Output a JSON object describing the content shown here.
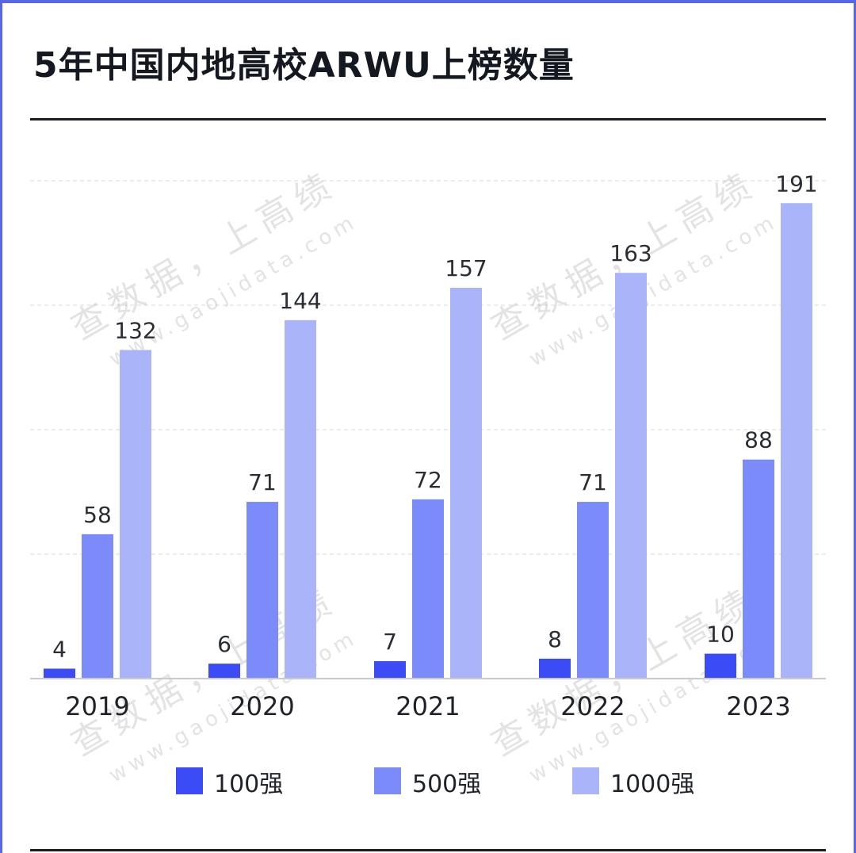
{
  "title": "5年中国内地高校ARWU上榜数量",
  "watermark": {
    "chinese": "查数据，上高绩",
    "url": "www.gaojidata.com"
  },
  "chart_data": {
    "type": "bar",
    "title": "5年中国内地高校ARWU上榜数量",
    "categories": [
      "2019",
      "2020",
      "2021",
      "2022",
      "2023"
    ],
    "series": [
      {
        "name": "100强",
        "values": [
          4,
          6,
          7,
          8,
          10
        ],
        "color": "#3b4bf5"
      },
      {
        "name": "500强",
        "values": [
          58,
          71,
          72,
          71,
          88
        ],
        "color": "#7b8cfa"
      },
      {
        "name": "1000强",
        "values": [
          132,
          144,
          157,
          163,
          191
        ],
        "color": "#a9b4f9"
      }
    ],
    "ylim": [
      0,
      200
    ],
    "grid": true,
    "legend_position": "bottom",
    "data_labels": true
  }
}
